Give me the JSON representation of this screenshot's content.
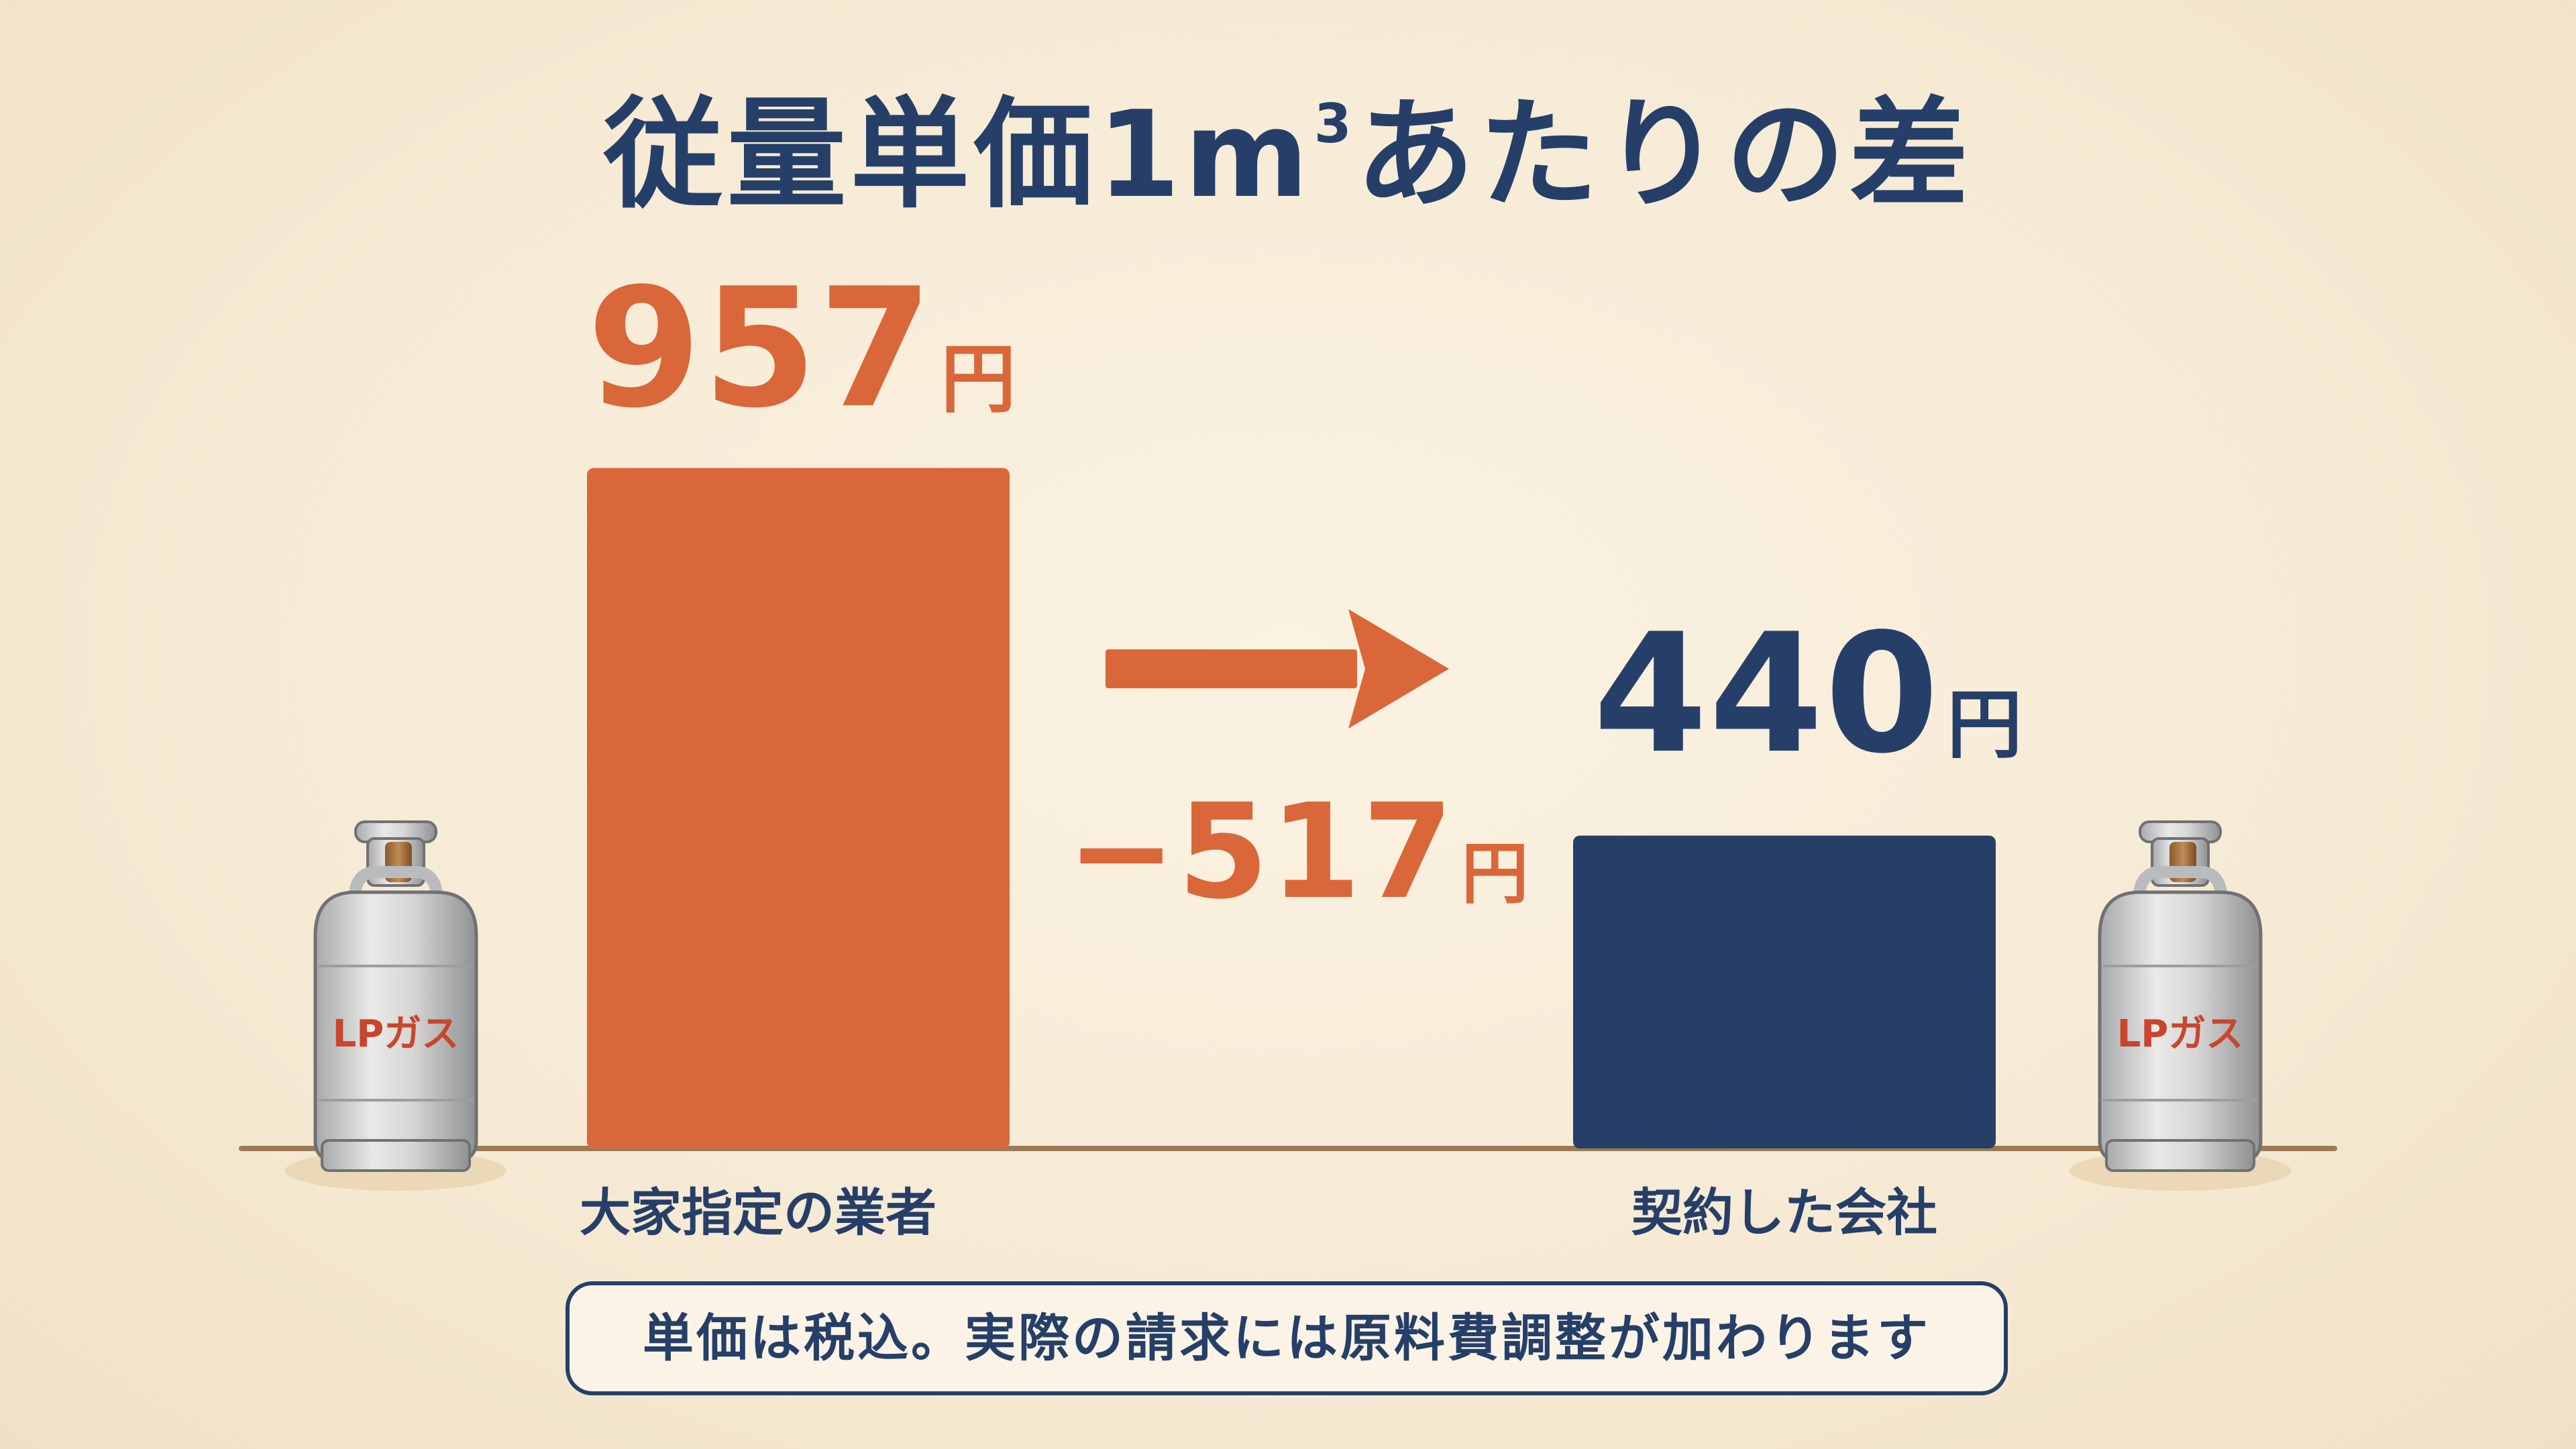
{
  "title": {
    "main": "従量単価1m",
    "superscript": "3",
    "suffix": "あたりの差"
  },
  "chart_data": {
    "type": "bar",
    "categories": [
      "大家指定の業者",
      "契約した会社"
    ],
    "values": [
      957,
      440
    ],
    "value_labels": [
      {
        "number": "957",
        "unit": "円"
      },
      {
        "number": "440",
        "unit": "円"
      }
    ],
    "difference": {
      "value": -517,
      "number": "−517",
      "unit": "円"
    },
    "colors": [
      "#d9673a",
      "#253f68"
    ],
    "ylim": [
      0,
      1000
    ],
    "grid": false
  },
  "illustration": {
    "cylinder_label_left": "LPガス",
    "cylinder_label_right": "LPガス",
    "cylinder_icon": "gas-cylinder-icon",
    "arrow_icon": "arrow-right-icon"
  },
  "footnote": "単価は税込。実際の請求には原料費調整が加わります"
}
